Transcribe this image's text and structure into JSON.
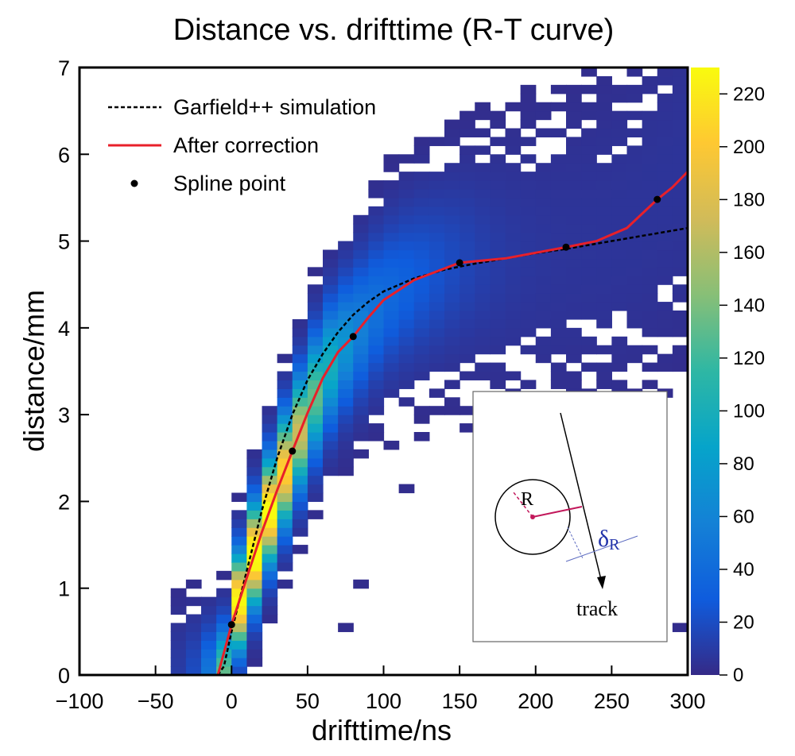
{
  "chart_data": {
    "type": "heatmap",
    "title": "Distance vs. drifttime (R-T curve)",
    "xlabel": "drifttime/ns",
    "ylabel": "distance/mm",
    "xlim": [
      -100,
      300
    ],
    "ylim": [
      0,
      7
    ],
    "x_ticks": [
      -100,
      -50,
      0,
      50,
      100,
      150,
      200,
      250,
      300
    ],
    "y_ticks": [
      0,
      1,
      2,
      3,
      4,
      5,
      6,
      7
    ],
    "colorbar": {
      "range": [
        0,
        230
      ],
      "ticks": [
        0,
        20,
        40,
        60,
        80,
        100,
        120,
        140,
        160,
        180,
        200,
        220
      ],
      "colormap": [
        "#352a87",
        "#0f5cdd",
        "#1481d6",
        "#06a4ca",
        "#2eb7a4",
        "#87bf77",
        "#d1bb59",
        "#fec832",
        "#f9fb0e"
      ]
    },
    "grid": false,
    "legend_position": "top-left",
    "legend": [
      {
        "label": "Garfield++ simulation",
        "style": "dashed",
        "color": "#000000"
      },
      {
        "label": "After correction",
        "style": "solid",
        "color": "#e8202a"
      },
      {
        "label": "Spline point",
        "style": "marker",
        "color": "#000000"
      }
    ],
    "series": [
      {
        "name": "Garfield++ simulation",
        "style": "dashed",
        "x": [
          -9,
          -5,
          0,
          10,
          20,
          30,
          40,
          50,
          60,
          70,
          80,
          90,
          100,
          120,
          140,
          160,
          180,
          200,
          220,
          240,
          260,
          280,
          300
        ],
        "y": [
          0,
          0.1,
          0.5,
          1.2,
          1.9,
          2.5,
          3.0,
          3.4,
          3.7,
          3.95,
          4.15,
          4.3,
          4.42,
          4.57,
          4.67,
          4.74,
          4.8,
          4.86,
          4.91,
          4.97,
          5.03,
          5.09,
          5.15
        ]
      },
      {
        "name": "After correction",
        "style": "solid",
        "x": [
          -100,
          -9,
          0,
          10,
          20,
          30,
          40,
          50,
          60,
          70,
          80,
          90,
          100,
          120,
          150,
          180,
          220,
          240,
          260,
          280,
          290,
          300
        ],
        "y": [
          0,
          0,
          0.58,
          1.12,
          1.65,
          2.13,
          2.58,
          3.02,
          3.42,
          3.72,
          3.9,
          4.12,
          4.32,
          4.55,
          4.75,
          4.8,
          4.93,
          5.0,
          5.15,
          5.48,
          5.62,
          5.8
        ]
      },
      {
        "name": "Spline point",
        "style": "marker",
        "x": [
          0,
          40,
          80,
          150,
          220,
          280
        ],
        "y": [
          0.58,
          2.58,
          3.9,
          4.75,
          4.93,
          5.48
        ]
      }
    ],
    "annotations": {
      "inset_labels": {
        "radius": "R",
        "residual_main": "δ",
        "residual_sub": "R",
        "track": "track"
      }
    }
  }
}
